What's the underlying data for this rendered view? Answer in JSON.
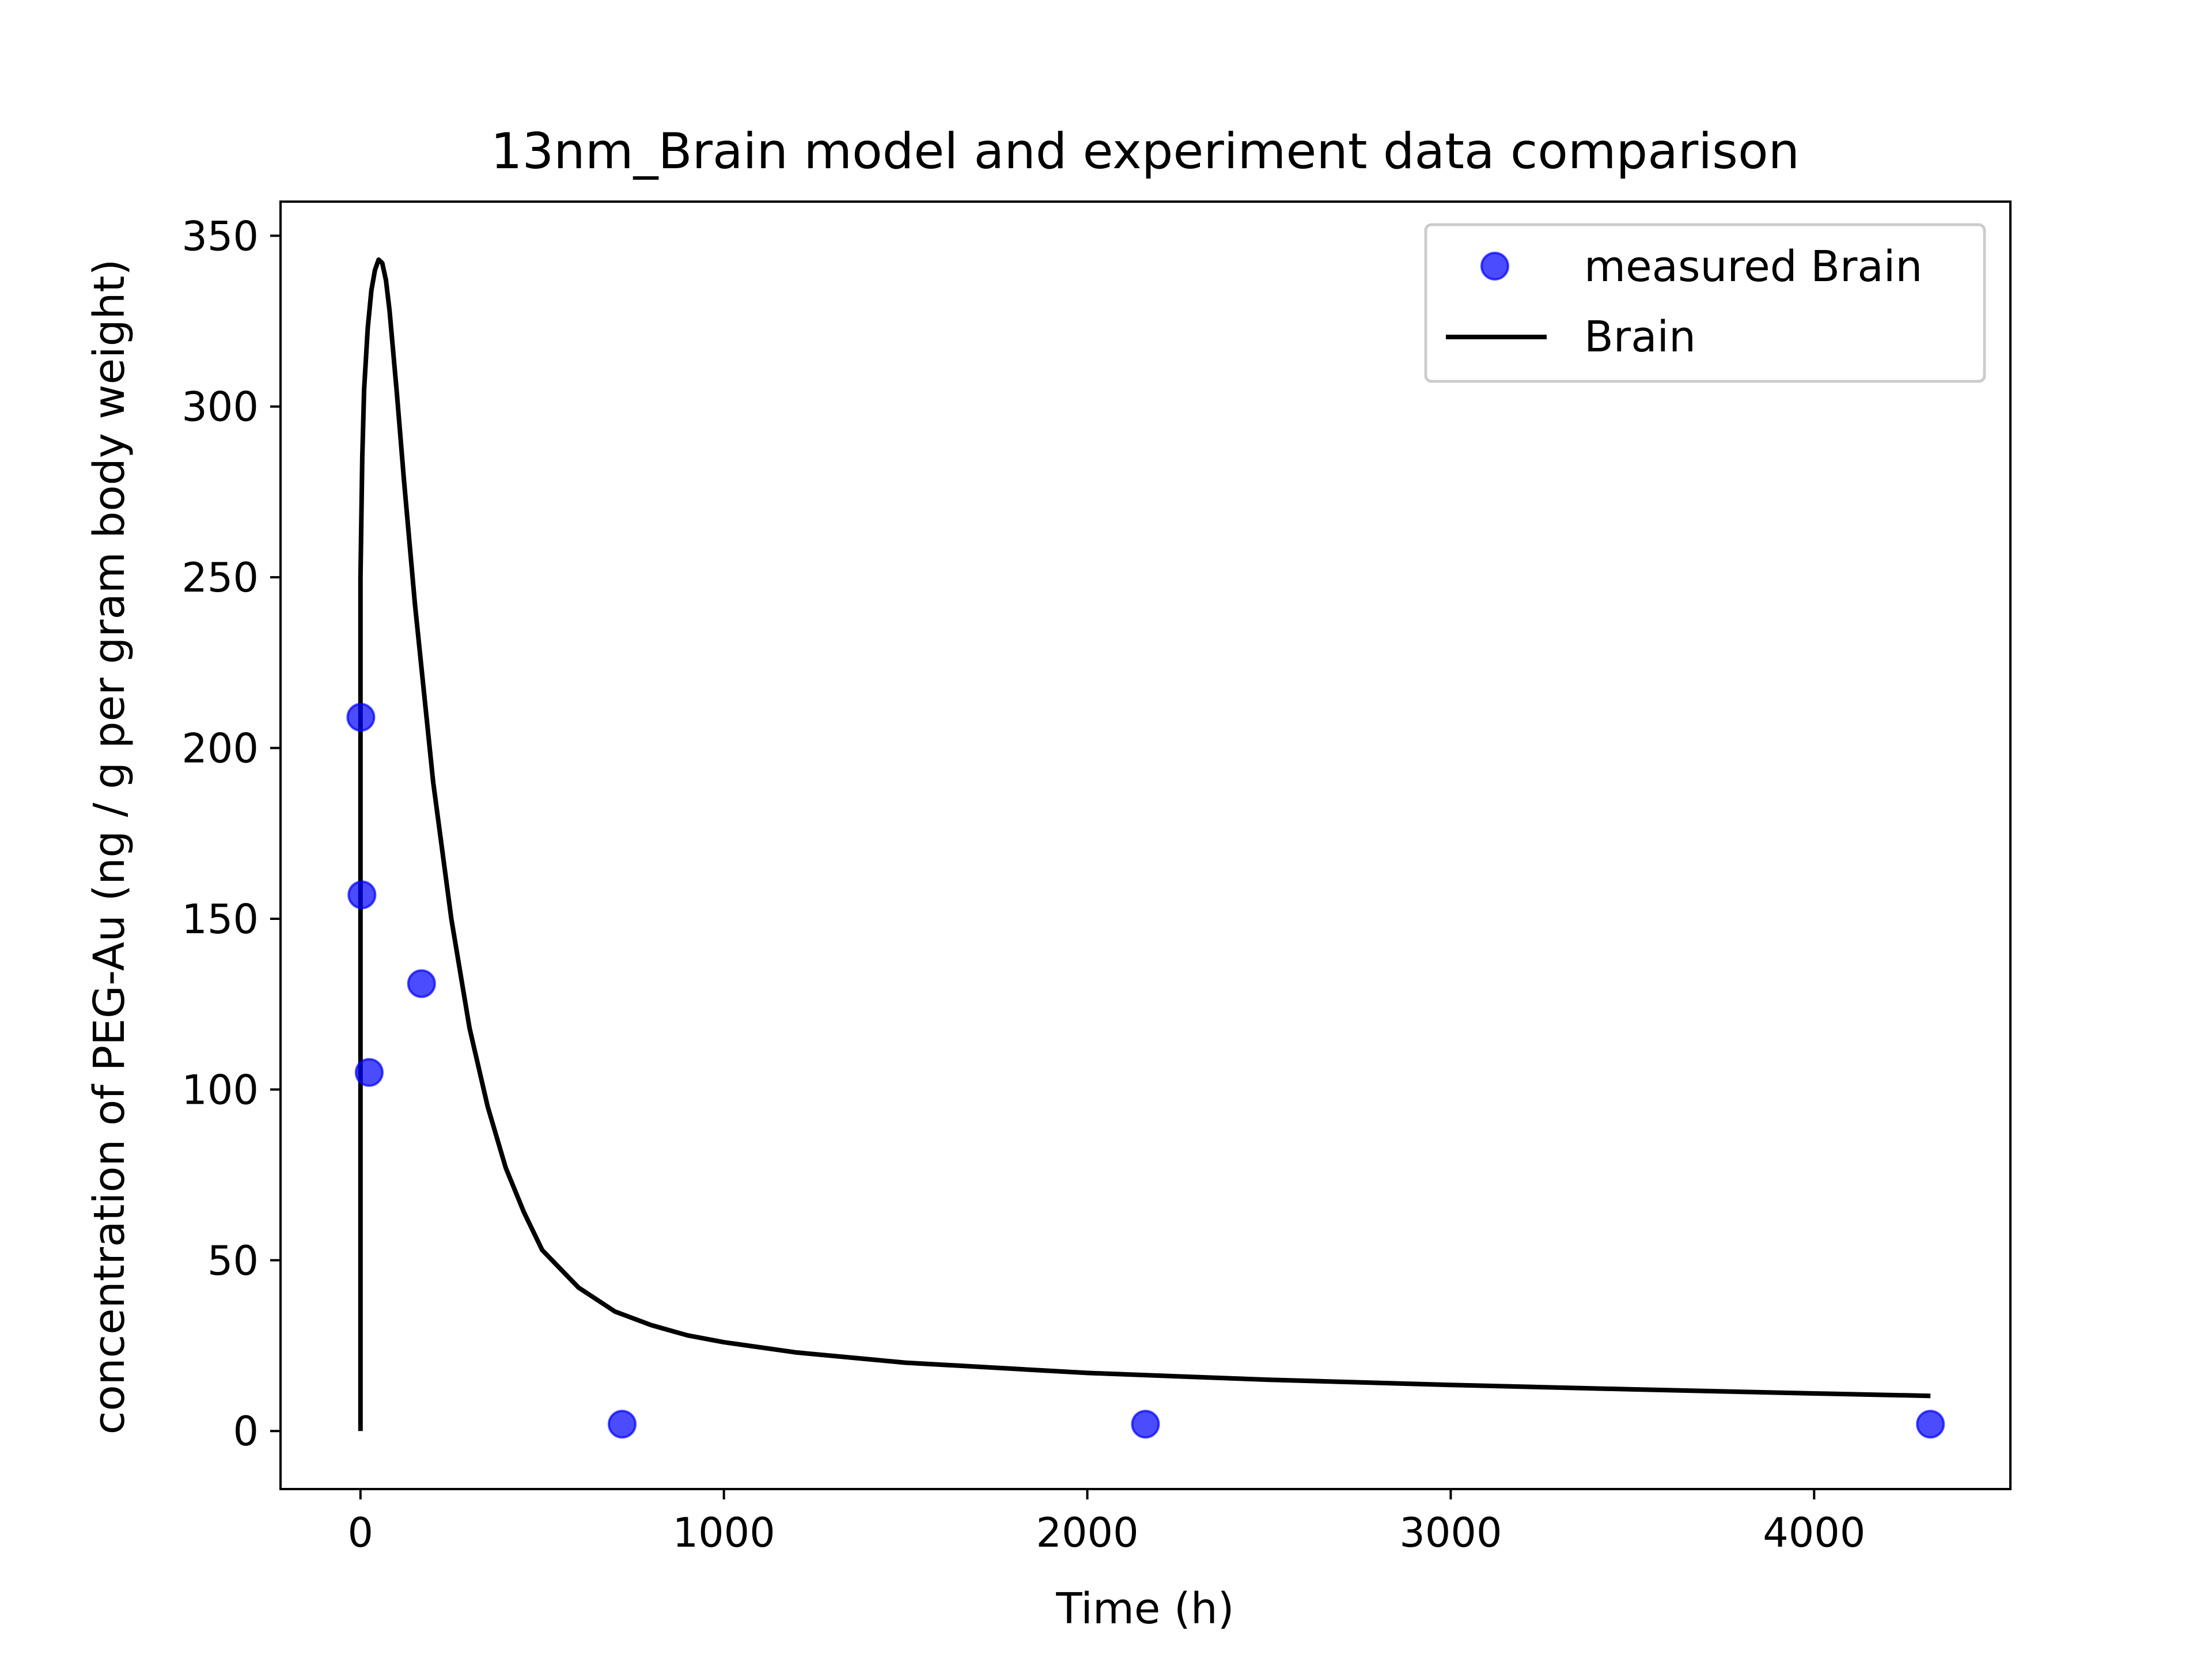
{
  "chart_data": {
    "type": "scatter",
    "title": "13nm_Brain model and experiment data comparison",
    "xlabel": "Time (h)",
    "ylabel": "concentration of PEG-Au (ng / g per gram body weight)",
    "xlim": [
      -220,
      4540
    ],
    "ylim": [
      -17,
      360
    ],
    "grid": false,
    "legend_position": "top-right",
    "xticks": [
      0,
      1000,
      2000,
      3000,
      4000
    ],
    "yticks": [
      0,
      50,
      100,
      150,
      200,
      250,
      300,
      350
    ],
    "series": [
      {
        "name": "measured Brain",
        "kind": "scatter",
        "color": "#0000ff",
        "x": [
          1,
          4,
          24,
          168,
          720,
          2160,
          4320
        ],
        "y": [
          209,
          157,
          105,
          131,
          2,
          2,
          2
        ]
      },
      {
        "name": "Brain",
        "kind": "line",
        "color": "#000000",
        "x": [
          0,
          0,
          5,
          10,
          20,
          30,
          40,
          50,
          60,
          70,
          80,
          100,
          120,
          150,
          200,
          250,
          300,
          350,
          400,
          450,
          500,
          600,
          700,
          800,
          900,
          1000,
          1200,
          1500,
          2000,
          2500,
          3000,
          3500,
          4000,
          4320
        ],
        "y": [
          0,
          250,
          285,
          305,
          323,
          334,
          340,
          343,
          342,
          337,
          328,
          304,
          278,
          242,
          190,
          150,
          118,
          95,
          77,
          64,
          53,
          42,
          35,
          31,
          28,
          26,
          23,
          20,
          17,
          15,
          13.5,
          12.2,
          11,
          10.3
        ]
      }
    ]
  }
}
